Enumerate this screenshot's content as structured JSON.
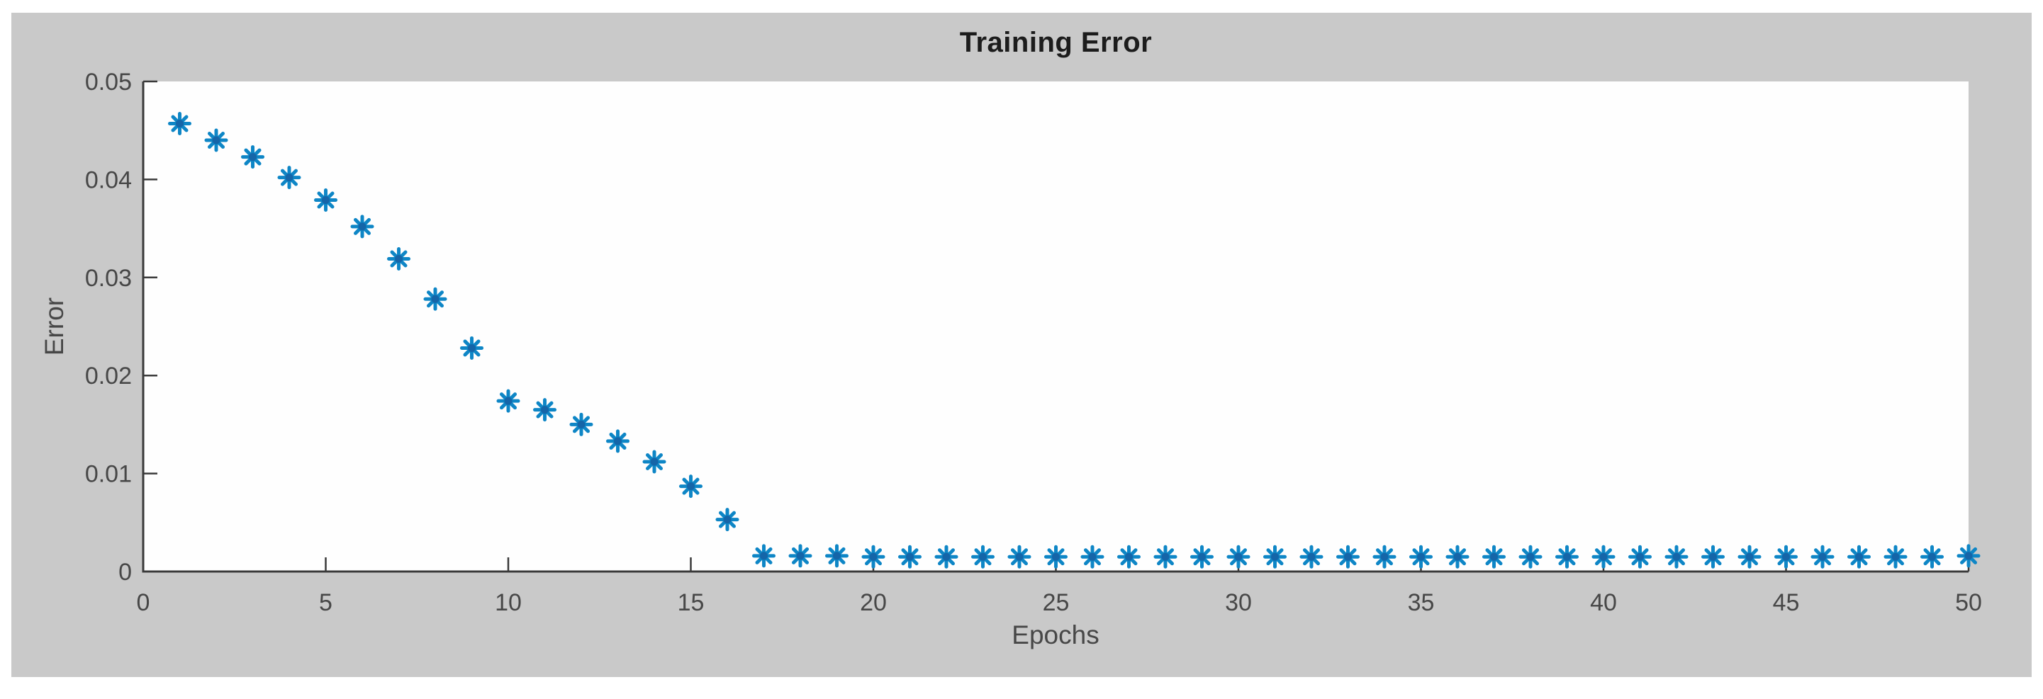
{
  "colors": {
    "page_bg": "#ffffff",
    "figure_bg": "#c9c9c9",
    "plot_bg": "#fefefe",
    "axis_line": "#3a3a3a",
    "tick_label": "#474747",
    "title_text": "#1c1c1c",
    "marker": "#0e86c6",
    "marker_core": "#1565a8"
  },
  "chart_data": {
    "type": "scatter",
    "title": "Training Error",
    "xlabel": "Epochs",
    "ylabel": "Error",
    "xlim": [
      0,
      50
    ],
    "ylim": [
      0,
      0.05
    ],
    "x_ticks": [
      0,
      5,
      10,
      15,
      20,
      25,
      30,
      35,
      40,
      45,
      50
    ],
    "x_tick_labels": [
      "0",
      "5",
      "10",
      "15",
      "20",
      "25",
      "30",
      "35",
      "40",
      "45",
      "50"
    ],
    "y_ticks": [
      0,
      0.01,
      0.02,
      0.03,
      0.04,
      0.05
    ],
    "y_tick_labels": [
      "0",
      "0.01",
      "0.02",
      "0.03",
      "0.04",
      "0.05"
    ],
    "grid": false,
    "legend_position": "none",
    "marker_style": "asterisk",
    "series": [
      {
        "name": "Training Error",
        "x": [
          1,
          2,
          3,
          4,
          5,
          6,
          7,
          8,
          9,
          10,
          11,
          12,
          13,
          14,
          15,
          16,
          17,
          18,
          19,
          20,
          21,
          22,
          23,
          24,
          25,
          26,
          27,
          28,
          29,
          30,
          31,
          32,
          33,
          34,
          35,
          36,
          37,
          38,
          39,
          40,
          41,
          42,
          43,
          44,
          45,
          46,
          47,
          48,
          49,
          50
        ],
        "y": [
          0.0457,
          0.044,
          0.0423,
          0.0402,
          0.0379,
          0.0352,
          0.0319,
          0.0278,
          0.0228,
          0.0174,
          0.0165,
          0.015,
          0.0133,
          0.0112,
          0.0087,
          0.0053,
          0.0016,
          0.0016,
          0.0016,
          0.0015,
          0.0015,
          0.0015,
          0.0015,
          0.0015,
          0.0015,
          0.0015,
          0.0015,
          0.0015,
          0.0015,
          0.0015,
          0.0015,
          0.0015,
          0.0015,
          0.0015,
          0.0015,
          0.0015,
          0.0015,
          0.0015,
          0.0015,
          0.0015,
          0.0015,
          0.0015,
          0.0015,
          0.0015,
          0.0015,
          0.0015,
          0.0015,
          0.0015,
          0.0015,
          0.0016
        ]
      }
    ]
  }
}
